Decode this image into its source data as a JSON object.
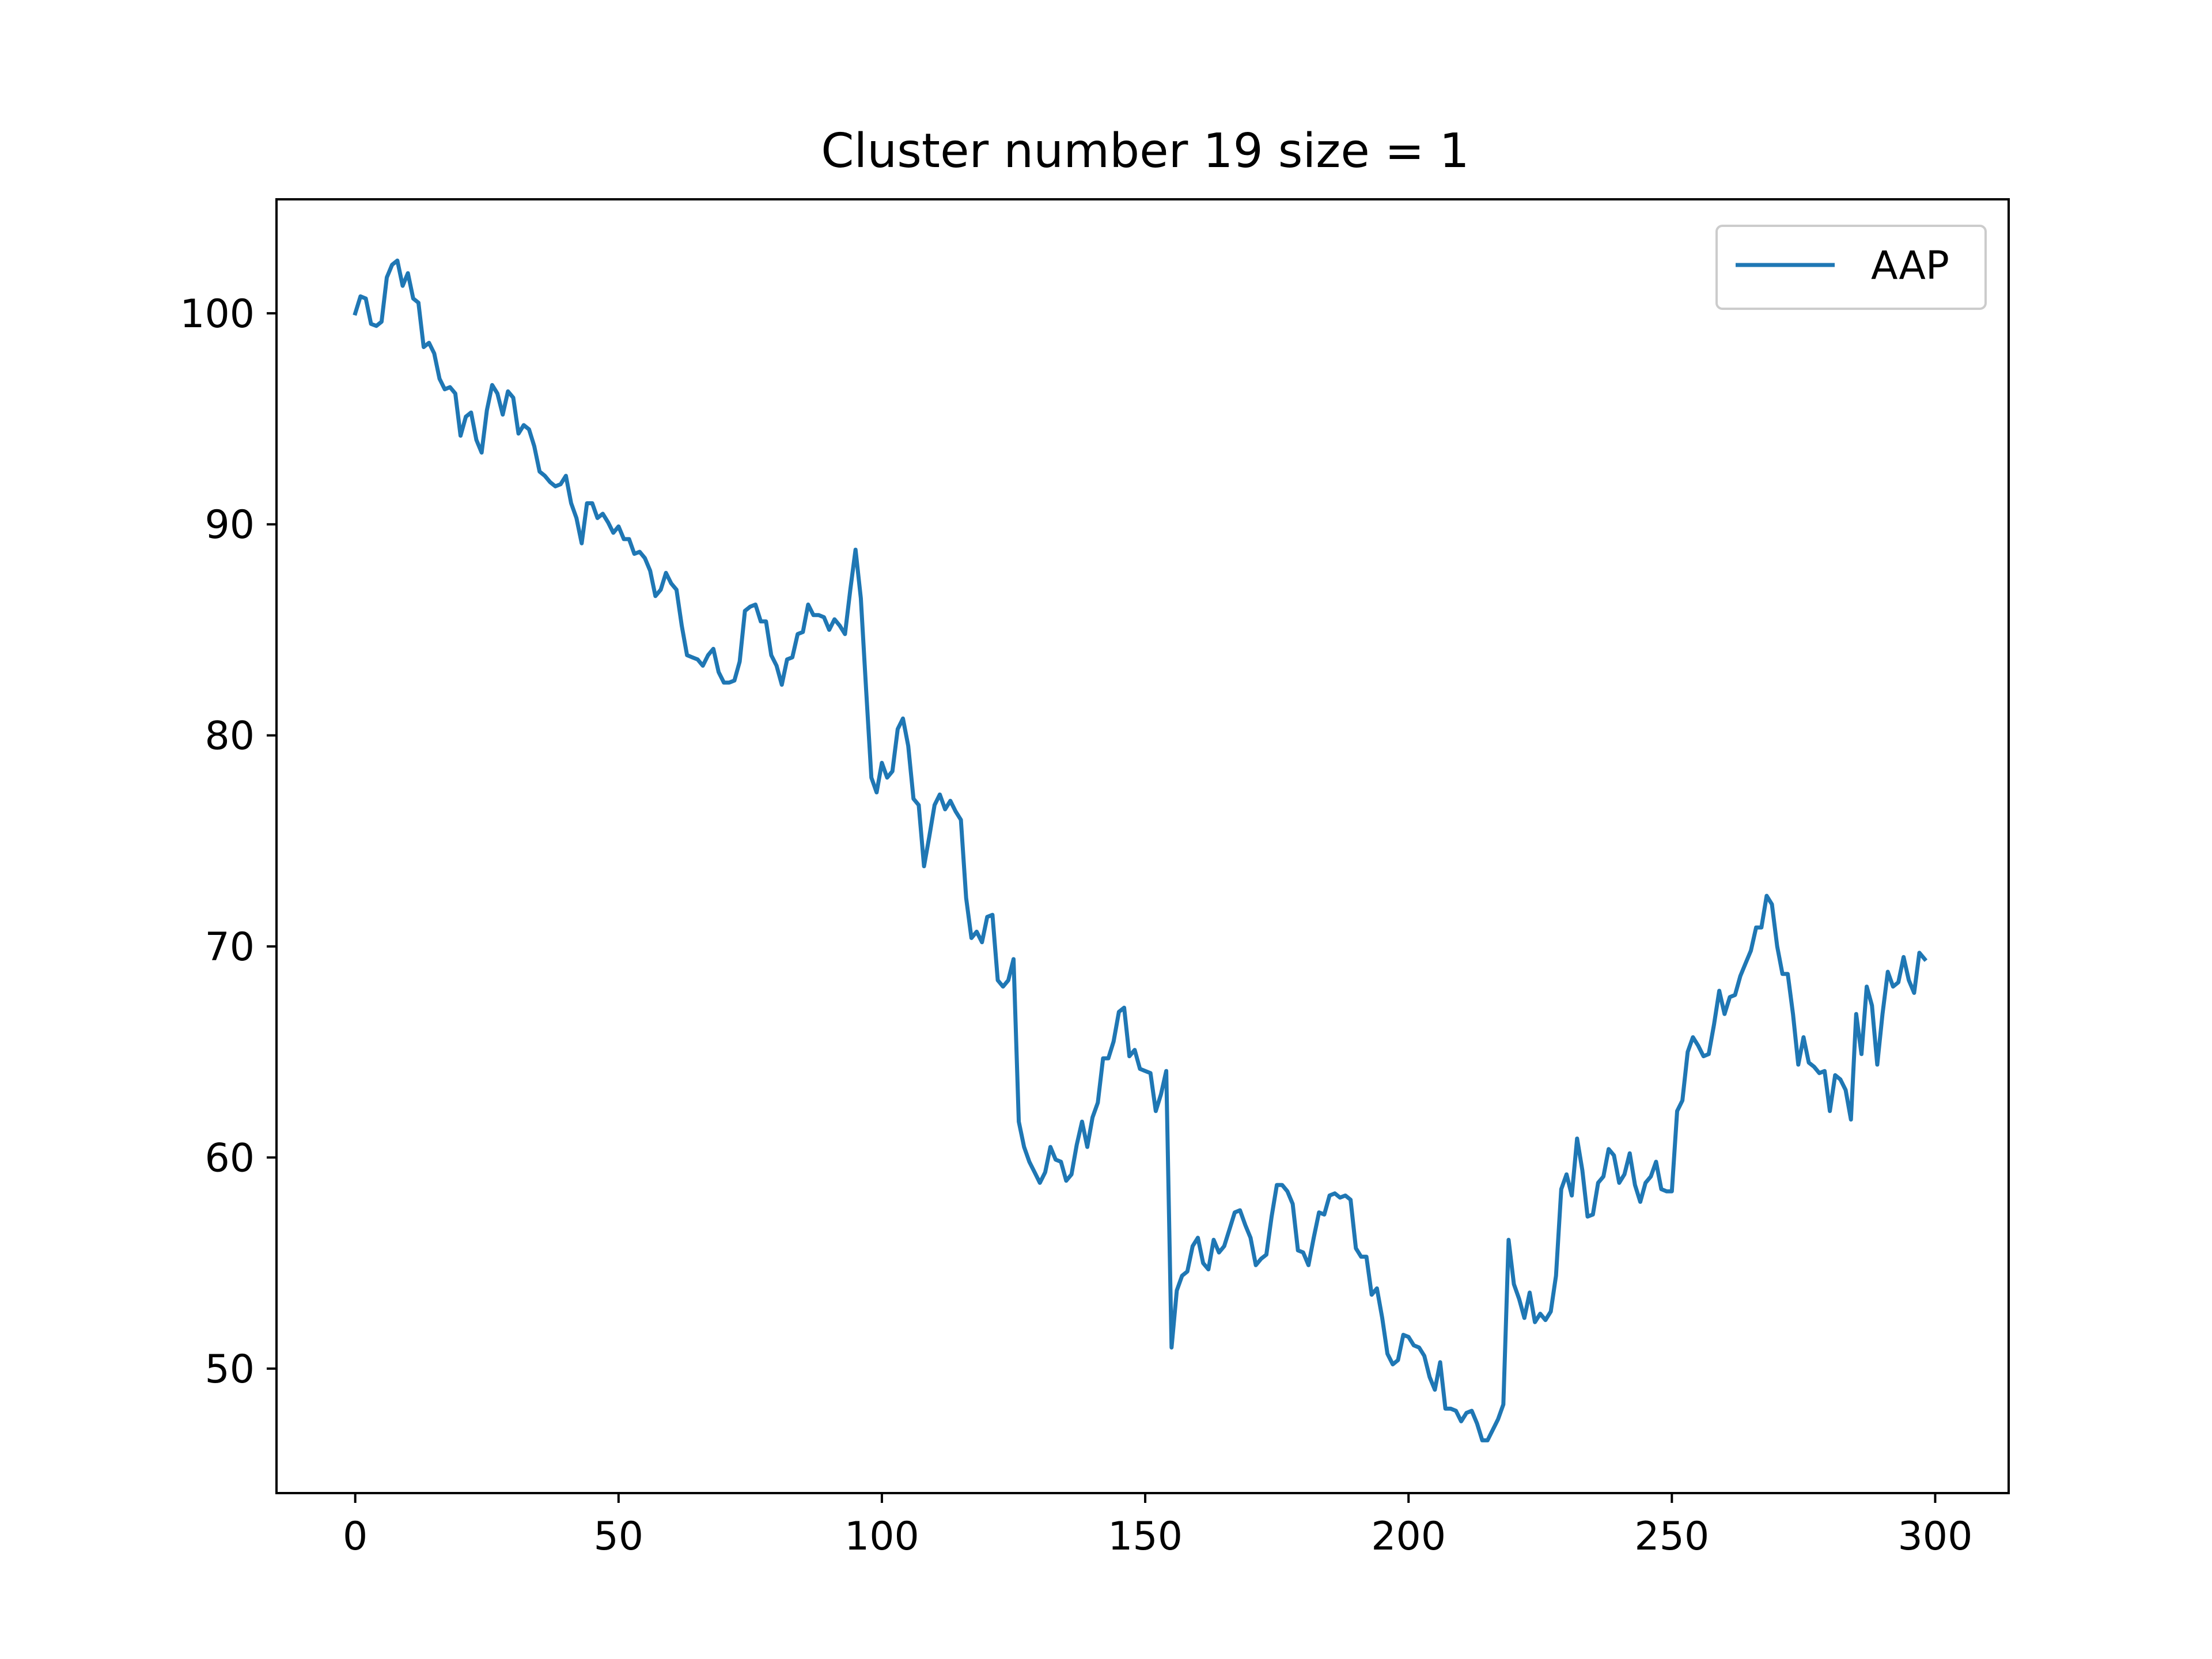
{
  "chart_data": {
    "type": "line",
    "title": "Cluster number 19 size = 1",
    "xlabel": "",
    "ylabel": "",
    "xlim": [
      -14.95,
      313.95
    ],
    "ylim": [
      44.1,
      105.4
    ],
    "xticks": [
      0,
      50,
      100,
      150,
      200,
      250,
      300
    ],
    "yticks": [
      50,
      60,
      70,
      80,
      90,
      100
    ],
    "grid": false,
    "legend_position": "top-right",
    "colors": {
      "AAP": "#1f77b4",
      "axes": "#000000",
      "background": "#ffffff"
    },
    "series": [
      {
        "name": "AAP",
        "x_start": 0,
        "x_step": 1,
        "values": [
          100.0,
          100.8,
          100.7,
          99.5,
          99.4,
          99.6,
          101.7,
          102.3,
          102.5,
          101.3,
          101.9,
          100.7,
          100.5,
          98.4,
          98.6,
          98.1,
          96.9,
          96.4,
          96.5,
          96.2,
          94.2,
          95.1,
          95.3,
          94.0,
          93.4,
          95.4,
          96.6,
          96.2,
          95.2,
          96.3,
          96.0,
          94.3,
          94.7,
          94.5,
          93.7,
          92.5,
          92.3,
          92.0,
          91.8,
          91.9,
          92.3,
          91.0,
          90.3,
          89.1,
          91.0,
          91.0,
          90.3,
          90.5,
          90.1,
          89.6,
          89.9,
          89.3,
          89.3,
          88.6,
          88.7,
          88.4,
          87.8,
          86.6,
          86.9,
          87.7,
          87.2,
          86.9,
          85.2,
          83.8,
          83.7,
          83.6,
          83.3,
          83.8,
          84.1,
          83.0,
          82.5,
          82.5,
          82.6,
          83.5,
          85.9,
          86.1,
          86.2,
          85.4,
          85.4,
          83.8,
          83.3,
          82.4,
          83.6,
          83.7,
          84.8,
          84.9,
          86.2,
          85.7,
          85.7,
          85.6,
          85.0,
          85.5,
          85.2,
          84.8,
          86.9,
          88.8,
          86.5,
          82.2,
          78.0,
          77.3,
          78.7,
          78.0,
          78.3,
          80.3,
          80.8,
          79.5,
          77.0,
          76.7,
          73.8,
          75.2,
          76.7,
          77.2,
          76.5,
          76.9,
          76.4,
          76.0,
          72.3,
          70.4,
          70.7,
          70.2,
          71.4,
          71.5,
          68.4,
          68.1,
          68.4,
          69.4,
          61.7,
          60.5,
          59.8,
          59.3,
          58.8,
          59.3,
          60.5,
          59.9,
          59.8,
          58.9,
          59.2,
          60.6,
          61.7,
          60.5,
          61.9,
          62.6,
          64.7,
          64.7,
          65.5,
          66.9,
          67.1,
          64.8,
          65.1,
          64.2,
          64.1,
          64.0,
          62.2,
          63.0,
          64.1,
          51.0,
          53.7,
          54.4,
          54.6,
          55.8,
          56.2,
          55.0,
          54.7,
          56.1,
          55.5,
          55.8,
          56.6,
          57.4,
          57.5,
          56.8,
          56.2,
          54.9,
          55.2,
          55.4,
          57.2,
          58.7,
          58.7,
          58.4,
          57.8,
          55.6,
          55.5,
          54.9,
          56.2,
          57.4,
          57.3,
          58.2,
          58.3,
          58.1,
          58.2,
          58.0,
          55.7,
          55.3,
          55.3,
          53.5,
          53.8,
          52.4,
          50.7,
          50.2,
          50.4,
          51.6,
          51.5,
          51.1,
          51.0,
          50.6,
          49.6,
          49.0,
          50.3,
          48.1,
          48.1,
          48.0,
          47.5,
          47.9,
          48.0,
          47.4,
          46.6,
          46.6,
          47.1,
          47.6,
          48.3,
          56.1,
          54.0,
          53.3,
          52.4,
          53.6,
          52.2,
          52.6,
          52.3,
          52.7,
          54.4,
          58.5,
          59.2,
          58.2,
          60.9,
          59.4,
          57.2,
          57.3,
          58.8,
          59.1,
          60.4,
          60.1,
          58.8,
          59.2,
          60.2,
          58.7,
          57.9,
          58.8,
          59.1,
          59.8,
          58.5,
          58.4,
          58.4,
          62.2,
          62.7,
          65.0,
          65.7,
          65.3,
          64.8,
          64.9,
          66.3,
          67.9,
          66.8,
          67.6,
          67.7,
          68.6,
          69.2,
          69.8,
          70.9,
          70.9,
          72.4,
          72.0,
          70.0,
          68.7,
          68.7,
          66.8,
          64.4,
          65.7,
          64.5,
          64.3,
          64.0,
          64.1,
          62.2,
          63.9,
          63.7,
          63.2,
          61.8,
          66.8,
          64.9,
          68.1,
          67.2,
          64.4,
          66.8,
          68.8,
          68.1,
          68.3,
          69.5,
          68.4,
          67.8,
          69.7,
          69.4
        ]
      }
    ]
  }
}
